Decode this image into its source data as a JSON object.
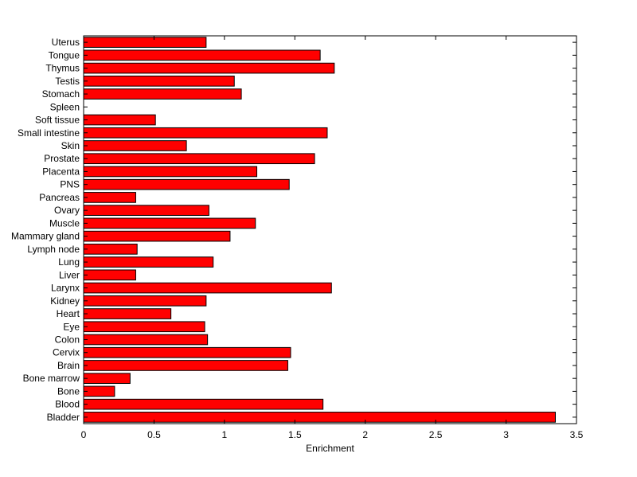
{
  "chart_data": {
    "type": "bar",
    "orientation": "horizontal",
    "title": "",
    "xlabel": "Enrichment",
    "ylabel": "",
    "xlim": [
      0,
      3.5
    ],
    "x_ticks": [
      "0",
      "0.5",
      "1",
      "1.5",
      "2",
      "2.5",
      "3",
      "3.5"
    ],
    "grid": false,
    "bar_color": "#ff0000",
    "edge_color": "#000000",
    "categories": [
      "Bladder",
      "Blood",
      "Bone",
      "Bone marrow",
      "Brain",
      "Cervix",
      "Colon",
      "Eye",
      "Heart",
      "Kidney",
      "Larynx",
      "Liver",
      "Lung",
      "Lymph node",
      "Mammary gland",
      "Muscle",
      "Ovary",
      "Pancreas",
      "PNS",
      "Placenta",
      "Prostate",
      "Skin",
      "Small intestine",
      "Soft tissue",
      "Spleen",
      "Stomach",
      "Testis",
      "Thymus",
      "Tongue",
      "Uterus"
    ],
    "values": [
      3.35,
      1.7,
      0.22,
      0.33,
      1.45,
      1.47,
      0.88,
      0.86,
      0.62,
      0.87,
      1.76,
      0.37,
      0.92,
      0.38,
      1.04,
      1.22,
      0.89,
      0.37,
      1.46,
      1.23,
      1.64,
      0.73,
      1.73,
      0.51,
      0.0,
      1.12,
      1.07,
      1.78,
      1.68,
      0.87
    ]
  }
}
